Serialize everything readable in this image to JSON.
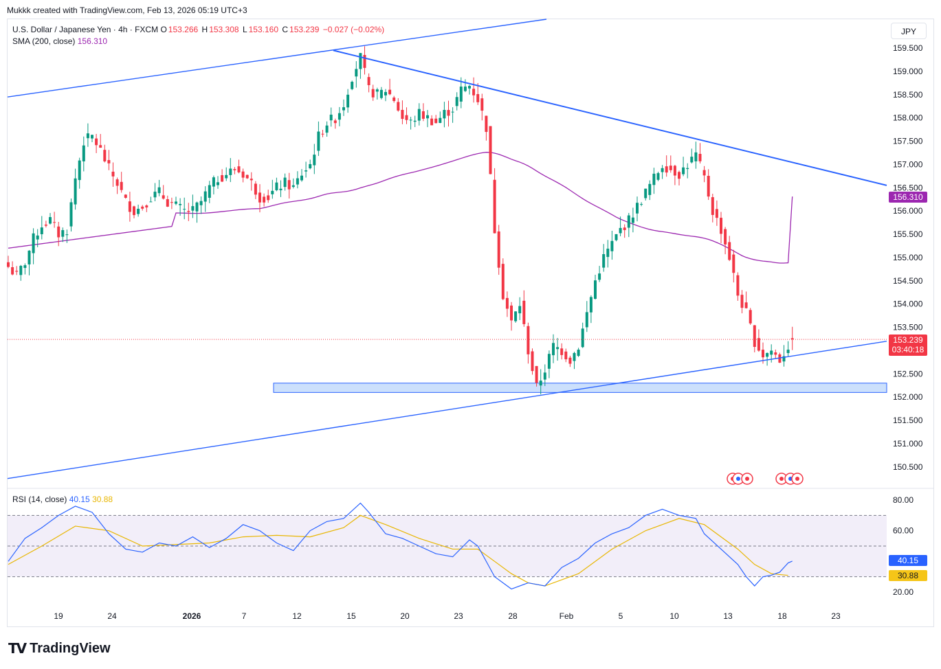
{
  "header": {
    "credit": "Mukkk created with TradingView.com, Feb 13, 2026 05:19 UTC+3"
  },
  "legend": {
    "symbol": "U.S. Dollar / Japanese Yen · 4h · FXCM",
    "o_label": "O",
    "o_value": "153.266",
    "h_label": "H",
    "h_value": "153.308",
    "l_label": "L",
    "l_value": "153.160",
    "c_label": "C",
    "c_value": "153.239",
    "change": "−0.027 (−0.02%)",
    "sma_label": "SMA (200, close)",
    "sma_value": "156.310",
    "rsi_label": "RSI (14, close)",
    "rsi_value": "40.15",
    "rsi_ma_value": "30.88"
  },
  "currency_button": "JPY",
  "tags": {
    "sma": "156.310",
    "price": "153.239",
    "countdown": "03:40:18",
    "rsi": "40.15",
    "rsi_ma": "30.88"
  },
  "brand": "TradingView",
  "colors": {
    "up": "#089981",
    "down": "#f23645",
    "sma": "#9c27b0",
    "trendline": "#2962ff",
    "rsi": "#2962ff",
    "rsi_ma": "#e8b600",
    "zone": "#bbd5fb"
  },
  "chart_data": [
    {
      "type": "candlestick",
      "title": "U.S. Dollar / Japanese Yen · 4h · FXCM",
      "y_axis_ticks": [
        "150.500",
        "151.000",
        "151.500",
        "152.000",
        "152.500",
        "153.000",
        "153.500",
        "154.000",
        "154.500",
        "155.000",
        "155.500",
        "156.000",
        "156.500",
        "157.000",
        "157.500",
        "158.000",
        "158.500",
        "159.000",
        "159.500"
      ],
      "x_axis_ticks": [
        "19",
        "24",
        "2026",
        "7",
        "12",
        "15",
        "20",
        "23",
        "28",
        "Feb",
        "5",
        "10",
        "13",
        "18",
        "23"
      ],
      "ylim": [
        150.2,
        159.9
      ],
      "last_price": 153.239,
      "close_path": [
        [
          0,
          154.8
        ],
        [
          2,
          154.6
        ],
        [
          4,
          154.9
        ],
        [
          6,
          155.4
        ],
        [
          8,
          155.7
        ],
        [
          10,
          155.8
        ],
        [
          12,
          155.5
        ],
        [
          14,
          155.6
        ],
        [
          16,
          156.7
        ],
        [
          18,
          157.5
        ],
        [
          20,
          157.6
        ],
        [
          22,
          157.3
        ],
        [
          24,
          156.9
        ],
        [
          26,
          156.6
        ],
        [
          28,
          156.2
        ],
        [
          30,
          156.0
        ],
        [
          32,
          156.1
        ],
        [
          34,
          156.3
        ],
        [
          36,
          156.4
        ],
        [
          38,
          156.2
        ],
        [
          40,
          156.1
        ],
        [
          42,
          156.0
        ],
        [
          44,
          156.0
        ],
        [
          46,
          156.2
        ],
        [
          48,
          156.5
        ],
        [
          50,
          156.7
        ],
        [
          52,
          156.8
        ],
        [
          54,
          156.9
        ],
        [
          56,
          156.8
        ],
        [
          58,
          156.6
        ],
        [
          60,
          156.3
        ],
        [
          62,
          156.3
        ],
        [
          64,
          156.5
        ],
        [
          66,
          156.6
        ],
        [
          68,
          156.5
        ],
        [
          70,
          156.8
        ],
        [
          72,
          157.0
        ],
        [
          74,
          157.6
        ],
        [
          76,
          157.9
        ],
        [
          78,
          158.0
        ],
        [
          80,
          158.3
        ],
        [
          82,
          158.9
        ],
        [
          84,
          159.3
        ],
        [
          86,
          158.6
        ],
        [
          88,
          158.5
        ],
        [
          90,
          158.6
        ],
        [
          92,
          158.4
        ],
        [
          94,
          158.0
        ],
        [
          96,
          157.9
        ],
        [
          98,
          158.1
        ],
        [
          100,
          158.0
        ],
        [
          102,
          157.9
        ],
        [
          104,
          158.1
        ],
        [
          106,
          158.2
        ],
        [
          108,
          158.6
        ],
        [
          110,
          158.7
        ],
        [
          112,
          158.4
        ],
        [
          114,
          157.8
        ],
        [
          116,
          155.6
        ],
        [
          118,
          154.2
        ],
        [
          120,
          153.6
        ],
        [
          122,
          154.0
        ],
        [
          124,
          153.0
        ],
        [
          126,
          152.2
        ],
        [
          128,
          152.6
        ],
        [
          130,
          153.1
        ],
        [
          132,
          153.0
        ],
        [
          134,
          152.8
        ],
        [
          136,
          153.1
        ],
        [
          138,
          153.8
        ],
        [
          140,
          154.5
        ],
        [
          142,
          155.0
        ],
        [
          144,
          155.3
        ],
        [
          146,
          155.6
        ],
        [
          148,
          155.8
        ],
        [
          150,
          156.1
        ],
        [
          152,
          156.4
        ],
        [
          154,
          156.7
        ],
        [
          156,
          157.0
        ],
        [
          158,
          156.9
        ],
        [
          160,
          156.8
        ],
        [
          162,
          157.0
        ],
        [
          164,
          157.2
        ],
        [
          166,
          156.7
        ],
        [
          168,
          156.0
        ],
        [
          170,
          155.6
        ],
        [
          172,
          155.0
        ],
        [
          174,
          154.2
        ],
        [
          176,
          153.8
        ],
        [
          178,
          153.2
        ],
        [
          180,
          152.9
        ],
        [
          182,
          153.0
        ],
        [
          184,
          152.8
        ],
        [
          186,
          153.1
        ],
        [
          187,
          153.239
        ]
      ],
      "overlays": [
        {
          "name": "SMA (200, close)",
          "last_value": 156.31
        },
        {
          "kind": "rising channel line (upper)"
        },
        {
          "kind": "falling trendline from 159.45 high"
        },
        {
          "kind": "rising channel line (lower)"
        },
        {
          "kind": "support zone",
          "from": 152.1,
          "to": 152.3
        }
      ]
    },
    {
      "type": "line",
      "title": "RSI (14, close)",
      "y_axis_ticks": [
        "20.00",
        "60.00",
        "80.00"
      ],
      "ylim": [
        15,
        85
      ],
      "bands": [
        30,
        50,
        70
      ],
      "series": [
        {
          "name": "RSI",
          "last_value": 40.15,
          "values": [
            [
              0,
              40
            ],
            [
              4,
              55
            ],
            [
              8,
              62
            ],
            [
              12,
              70
            ],
            [
              16,
              76
            ],
            [
              20,
              72
            ],
            [
              24,
              58
            ],
            [
              28,
              48
            ],
            [
              32,
              46
            ],
            [
              36,
              52
            ],
            [
              40,
              50
            ],
            [
              44,
              56
            ],
            [
              48,
              49
            ],
            [
              52,
              55
            ],
            [
              56,
              64
            ],
            [
              60,
              60
            ],
            [
              64,
              52
            ],
            [
              68,
              47
            ],
            [
              72,
              60
            ],
            [
              76,
              66
            ],
            [
              80,
              68
            ],
            [
              84,
              78
            ],
            [
              86,
              72
            ],
            [
              90,
              58
            ],
            [
              94,
              55
            ],
            [
              98,
              50
            ],
            [
              102,
              45
            ],
            [
              106,
              43
            ],
            [
              110,
              54
            ],
            [
              112,
              50
            ],
            [
              116,
              30
            ],
            [
              120,
              22
            ],
            [
              124,
              26
            ],
            [
              128,
              24
            ],
            [
              132,
              36
            ],
            [
              136,
              42
            ],
            [
              140,
              52
            ],
            [
              144,
              58
            ],
            [
              148,
              62
            ],
            [
              152,
              70
            ],
            [
              156,
              74
            ],
            [
              160,
              70
            ],
            [
              164,
              68
            ],
            [
              166,
              58
            ],
            [
              170,
              48
            ],
            [
              174,
              38
            ],
            [
              176,
              30
            ],
            [
              178,
              24
            ],
            [
              180,
              30
            ],
            [
              182,
              31
            ],
            [
              184,
              33
            ],
            [
              186,
              39
            ],
            [
              187,
              40.15
            ]
          ]
        },
        {
          "name": "RSI-based MA",
          "last_value": 30.88,
          "values": [
            [
              0,
              38
            ],
            [
              8,
              50
            ],
            [
              16,
              63
            ],
            [
              24,
              60
            ],
            [
              32,
              50
            ],
            [
              40,
              51
            ],
            [
              48,
              52
            ],
            [
              56,
              56
            ],
            [
              64,
              57
            ],
            [
              72,
              56
            ],
            [
              80,
              62
            ],
            [
              84,
              70
            ],
            [
              90,
              64
            ],
            [
              98,
              55
            ],
            [
              106,
              48
            ],
            [
              112,
              48
            ],
            [
              116,
              40
            ],
            [
              120,
              32
            ],
            [
              124,
              26
            ],
            [
              128,
              24
            ],
            [
              136,
              32
            ],
            [
              144,
              48
            ],
            [
              152,
              60
            ],
            [
              160,
              68
            ],
            [
              166,
              64
            ],
            [
              170,
              56
            ],
            [
              174,
              48
            ],
            [
              178,
              38
            ],
            [
              182,
              32
            ],
            [
              186,
              30.88
            ]
          ]
        }
      ]
    }
  ]
}
